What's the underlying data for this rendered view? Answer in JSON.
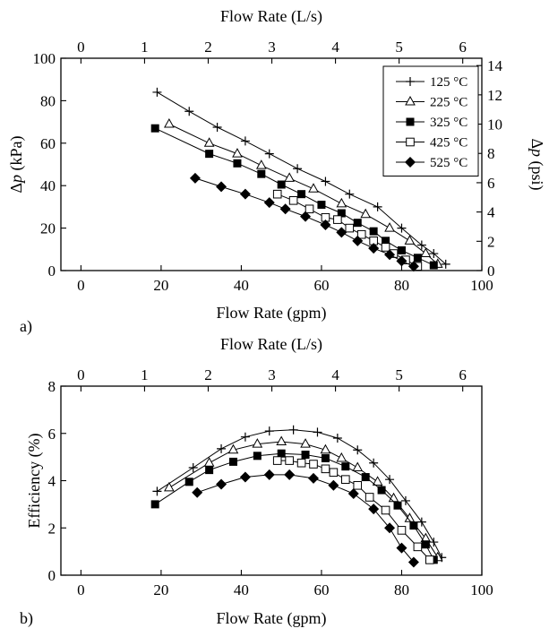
{
  "chart_data": [
    {
      "type": "line",
      "panel_label": "a)",
      "xlabel": "Flow Rate (gpm)",
      "x2label": "Flow Rate (L/s)",
      "ylabel_prefix": "Δ",
      "ylabel_var": "p",
      "ylabel_suffix": " (kPa)",
      "y2label_prefix": "Δ",
      "y2label_var": "p",
      "y2label_suffix": " (psi)",
      "xlim": [
        -5,
        100
      ],
      "ylim": [
        0,
        100
      ],
      "x2lim": [
        -0.315,
        6.3
      ],
      "y2lim": [
        0,
        14.5
      ],
      "xticks": [
        0,
        20,
        40,
        60,
        80,
        100
      ],
      "yticks": [
        0,
        20,
        40,
        60,
        80,
        100
      ],
      "x2ticks": [
        0,
        1,
        2,
        3,
        4,
        5,
        6
      ],
      "y2ticks": [
        0,
        2,
        4,
        6,
        8,
        10,
        12,
        14
      ],
      "grid": false,
      "legend_position": "top-right",
      "series": [
        {
          "name": "125 °C",
          "marker": "plus",
          "x": [
            19,
            27,
            34,
            41,
            47,
            54,
            61,
            67,
            74,
            80,
            85,
            88,
            91
          ],
          "y": [
            84,
            75,
            67.5,
            61,
            55,
            48,
            42,
            36,
            30,
            20,
            12,
            8,
            3
          ]
        },
        {
          "name": "225 °C",
          "marker": "triangle",
          "x": [
            22,
            32,
            39,
            45,
            52,
            58,
            65,
            71,
            77,
            82,
            86,
            89
          ],
          "y": [
            69,
            60,
            55,
            49.5,
            43.5,
            38.5,
            31.5,
            26.5,
            20,
            14,
            8,
            3
          ]
        },
        {
          "name": "325 °C",
          "marker": "filled-square",
          "x": [
            18.5,
            32,
            39,
            45,
            50,
            55,
            60,
            65,
            69,
            73,
            76,
            80,
            84,
            88
          ],
          "y": [
            67,
            55,
            50.5,
            45.5,
            40.5,
            36,
            31,
            27,
            22.5,
            18.5,
            14,
            9.5,
            6,
            2.5
          ]
        },
        {
          "name": "425 °C",
          "marker": "open-square",
          "x": [
            49,
            53,
            57,
            61,
            64,
            67,
            70,
            73,
            76,
            78,
            81,
            84
          ],
          "y": [
            36,
            33,
            29,
            25,
            24,
            20,
            17,
            14,
            11,
            8,
            5,
            2
          ]
        },
        {
          "name": "525 °C",
          "marker": "filled-diamond",
          "x": [
            28.5,
            35,
            41,
            47,
            51,
            56,
            61,
            65,
            69,
            73,
            77,
            80,
            83
          ],
          "y": [
            43.5,
            39.5,
            36,
            32,
            29,
            25.5,
            21.5,
            18,
            14,
            10.5,
            7.5,
            4.5,
            2
          ]
        }
      ]
    },
    {
      "type": "line",
      "panel_label": "b)",
      "xlabel": "Flow Rate (gpm)",
      "x2label": "Flow Rate (L/s)",
      "ylabel": "Efficiency (%)",
      "xlim": [
        -5,
        100
      ],
      "ylim": [
        0,
        8
      ],
      "x2lim": [
        -0.315,
        6.3
      ],
      "xticks": [
        0,
        20,
        40,
        60,
        80,
        100
      ],
      "yticks": [
        0,
        2,
        4,
        6,
        8
      ],
      "x2ticks": [
        0,
        1,
        2,
        3,
        4,
        5,
        6
      ],
      "grid": false,
      "series": [
        {
          "name": "125 °C",
          "marker": "plus",
          "x": [
            19,
            28,
            35,
            41,
            47,
            53,
            59,
            64,
            69,
            73,
            77,
            81,
            85,
            88,
            90
          ],
          "y": [
            3.55,
            4.55,
            5.35,
            5.85,
            6.1,
            6.15,
            6.05,
            5.8,
            5.3,
            4.75,
            4.05,
            3.15,
            2.25,
            1.4,
            0.75
          ]
        },
        {
          "name": "225 °C",
          "marker": "triangle",
          "x": [
            22,
            32,
            38,
            44,
            50,
            56,
            61,
            65,
            69,
            74,
            78,
            82,
            86,
            89
          ],
          "y": [
            3.7,
            4.75,
            5.3,
            5.55,
            5.65,
            5.55,
            5.3,
            4.95,
            4.55,
            3.95,
            3.25,
            2.4,
            1.55,
            0.75
          ]
        },
        {
          "name": "325 °C",
          "marker": "filled-square",
          "x": [
            18.5,
            27,
            32,
            38,
            44,
            50,
            56,
            61,
            66,
            71,
            75,
            79,
            83,
            86,
            88
          ],
          "y": [
            3.0,
            3.95,
            4.45,
            4.8,
            5.05,
            5.15,
            5.1,
            4.95,
            4.6,
            4.15,
            3.6,
            2.95,
            2.1,
            1.3,
            0.65
          ]
        },
        {
          "name": "425 °C",
          "marker": "open-square",
          "x": [
            49,
            52,
            55,
            58,
            61,
            63,
            66,
            69,
            72,
            76,
            80,
            84,
            87
          ],
          "y": [
            4.85,
            4.85,
            4.75,
            4.7,
            4.5,
            4.35,
            4.05,
            3.8,
            3.3,
            2.75,
            1.9,
            1.2,
            0.65
          ]
        },
        {
          "name": "525 °C",
          "marker": "filled-diamond",
          "x": [
            29,
            35,
            41,
            47,
            52,
            58,
            63,
            68,
            73,
            77,
            80,
            83
          ],
          "y": [
            3.5,
            3.85,
            4.15,
            4.25,
            4.25,
            4.1,
            3.8,
            3.45,
            2.8,
            2.0,
            1.15,
            0.55
          ]
        }
      ]
    }
  ]
}
